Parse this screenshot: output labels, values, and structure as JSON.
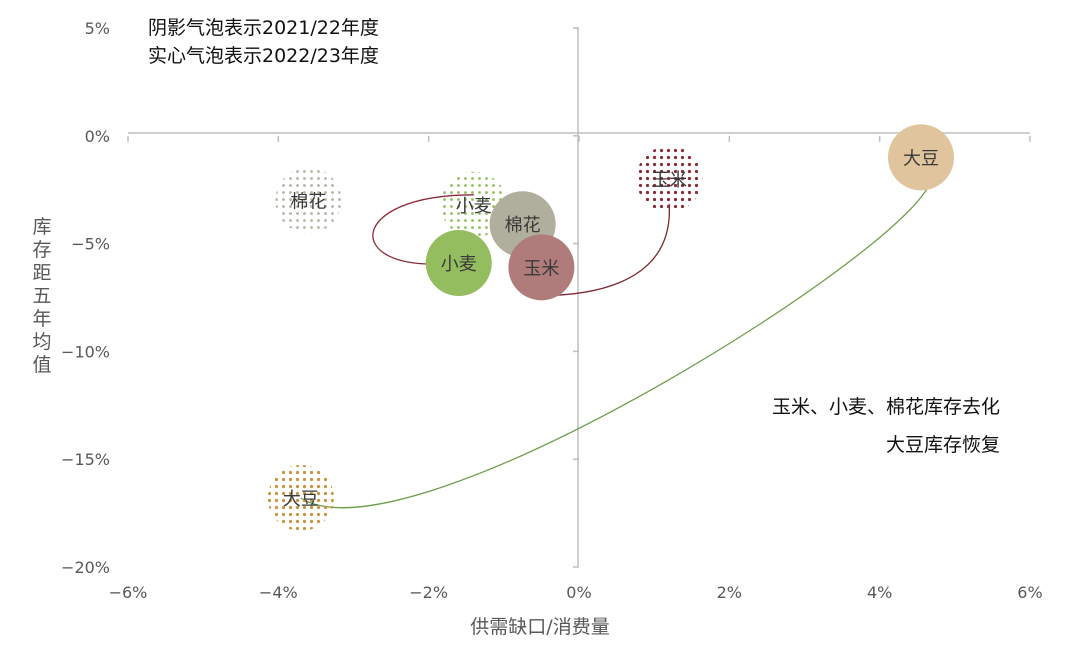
{
  "chart_data": {
    "type": "scatter",
    "subtitle_lines": [
      "阴影气泡表示2021/22年度",
      "实心气泡表示2022/23年度"
    ],
    "xlabel": "供需缺口/消费量",
    "ylabel": "库存距五年均值",
    "xlim": [
      -6,
      6
    ],
    "ylim": [
      -20,
      5
    ],
    "xticks": [
      "−6%",
      "−4%",
      "−2%",
      "0%",
      "2%",
      "4%",
      "6%"
    ],
    "yticks": [
      "5%",
      "0%",
      "−5%",
      "−10%",
      "−15%",
      "−20%"
    ],
    "annotations": [
      "玉米、小麦、棉花库存去化",
      "大豆库存恢复"
    ],
    "series": [
      {
        "name": "阴影气泡表示2021/22年度",
        "points": [
          {
            "label": "棉花",
            "x": -3.6,
            "y": -3.0,
            "color": "#b7b3a6"
          },
          {
            "label": "小麦",
            "x": -1.4,
            "y": -3.2,
            "color": "#93bd5e"
          },
          {
            "label": "玉米",
            "x": 1.2,
            "y": -2.0,
            "color": "#8b2b38"
          },
          {
            "label": "大豆",
            "x": -3.7,
            "y": -16.8,
            "color": "#c89440"
          }
        ]
      },
      {
        "name": "实心气泡表示2022/23年度",
        "points": [
          {
            "label": "小麦",
            "x": -1.6,
            "y": -5.9,
            "color": "#93bd5e"
          },
          {
            "label": "棉花",
            "x": -0.75,
            "y": -4.1,
            "color": "#b0ae9c"
          },
          {
            "label": "玉米",
            "x": -0.5,
            "y": -6.1,
            "color": "#b07b7b"
          },
          {
            "label": "大豆",
            "x": 4.55,
            "y": -1.0,
            "color": "#e0c49d"
          }
        ]
      }
    ],
    "arrows": [
      {
        "from": "小麦",
        "color": "#8b2b38"
      },
      {
        "from": "玉米",
        "color": "#7a2a30"
      },
      {
        "from": "大豆",
        "color": "#6e9f4c"
      }
    ]
  }
}
